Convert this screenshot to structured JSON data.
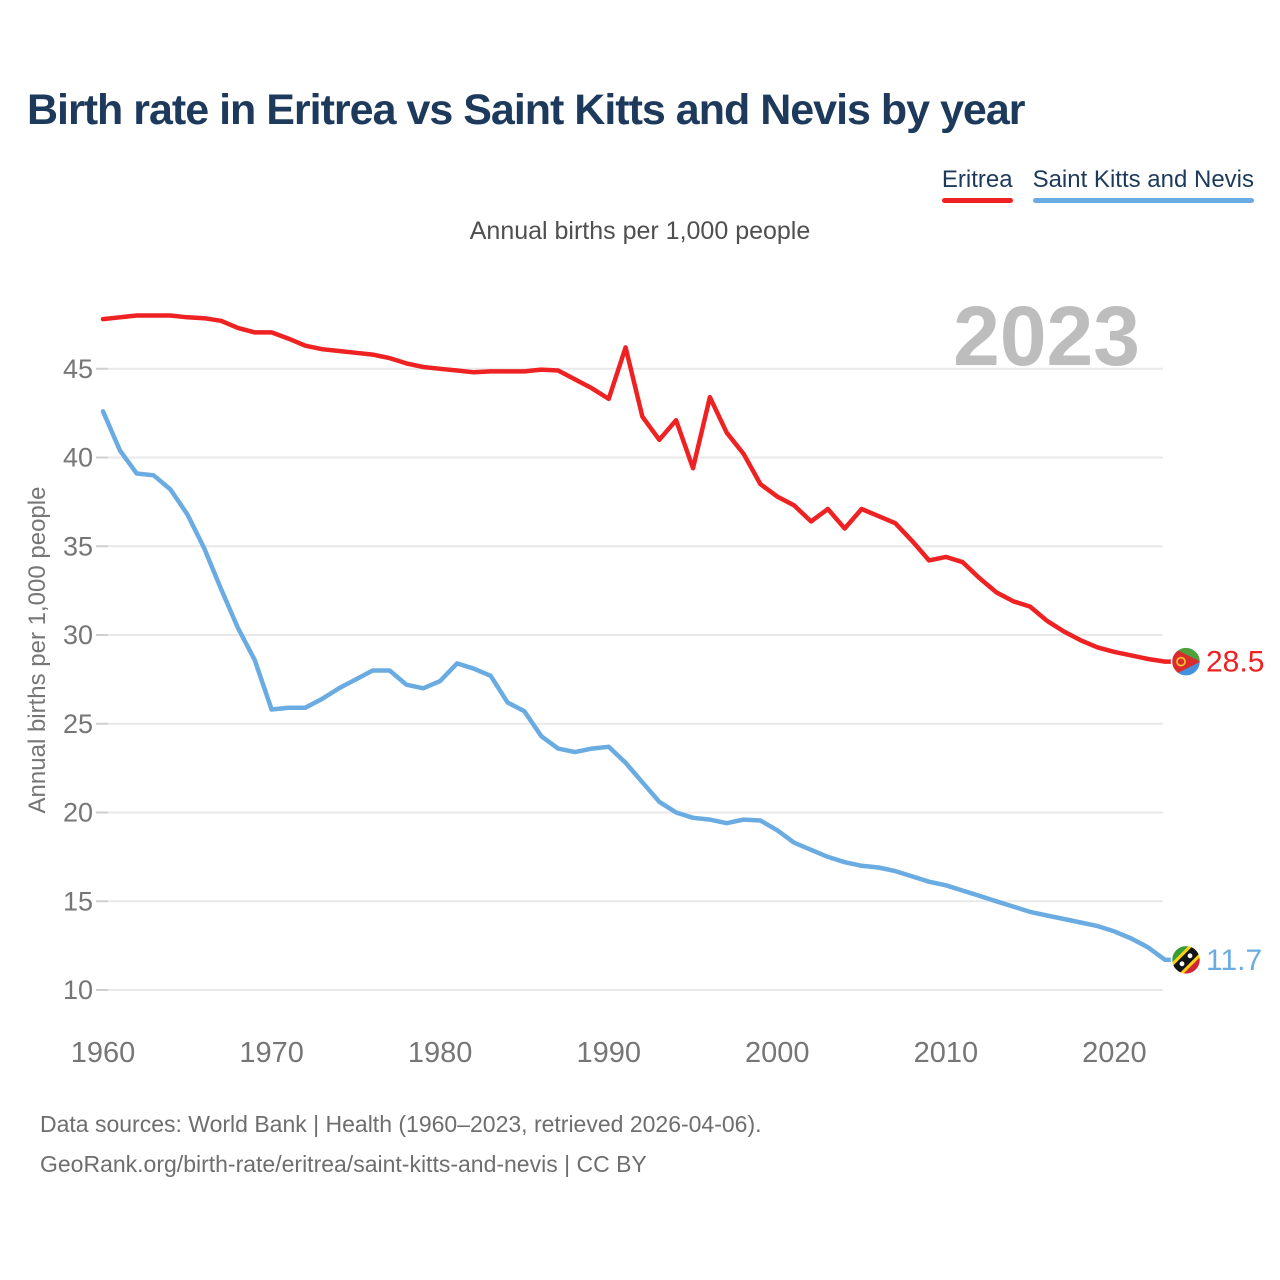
{
  "title": "Birth rate in Eritrea vs Saint Kitts and Nevis by year",
  "subtitle": "Annual births per 1,000 people",
  "watermark": "2023",
  "legend": [
    {
      "label": "Eritrea",
      "color": "#ee2222"
    },
    {
      "label": "Saint Kitts and Nevis",
      "color": "#6fadе1"
    }
  ],
  "colors": {
    "eritrea_line": "#ee2222",
    "saint_kitts_line": "#6aace1",
    "title_navy": "#1d3a5c",
    "axis_text_gray": "#767676",
    "watermark_gray": "#bdbdbd",
    "gridline_gray": "#e9e9e9",
    "footer_gray": "#6e6e6e"
  },
  "chart_data": {
    "type": "line",
    "title": "Birth rate in Eritrea vs Saint Kitts and Nevis by year",
    "ylabel": "Annual births per 1,000 people",
    "xlabel": "",
    "x_start": 1960,
    "x_end": 2023,
    "xticks": [
      1960,
      1970,
      1980,
      1990,
      2000,
      2010,
      2020
    ],
    "yticks": [
      45,
      40,
      35,
      30,
      25,
      20,
      15,
      10
    ],
    "ylim": [
      8.5,
      48.5
    ],
    "grid": "horizontal",
    "legend_position": "top-right",
    "watermark": "2023",
    "series": [
      {
        "name": "Eritrea",
        "color": "#ee2222",
        "end_label": "28.5",
        "flag": "eritrea",
        "values": [
          47.8,
          47.9,
          48.0,
          48.0,
          48.0,
          47.9,
          47.85,
          47.7,
          47.3,
          47.05,
          47.05,
          46.7,
          46.3,
          46.1,
          46.0,
          45.9,
          45.8,
          45.6,
          45.3,
          45.1,
          45.0,
          44.9,
          44.8,
          44.85,
          44.85,
          44.85,
          44.95,
          44.9,
          44.4,
          43.9,
          43.3,
          46.2,
          42.3,
          41.0,
          42.1,
          39.4,
          43.4,
          41.4,
          40.2,
          38.5,
          37.8,
          37.3,
          36.4,
          37.1,
          36.0,
          37.1,
          36.7,
          36.3,
          35.3,
          34.2,
          34.4,
          34.1,
          33.2,
          32.4,
          31.9,
          31.6,
          30.8,
          30.2,
          29.7,
          29.3,
          29.05,
          28.85,
          28.65,
          28.5
        ]
      },
      {
        "name": "Saint Kitts and Nevis",
        "color": "#6aace1",
        "end_label": "11.7",
        "flag": "saint-kitts-and-nevis",
        "values": [
          42.6,
          40.4,
          39.1,
          39.0,
          38.2,
          36.8,
          34.9,
          32.6,
          30.4,
          28.6,
          25.8,
          25.9,
          25.9,
          26.4,
          27.0,
          27.5,
          28.0,
          28.0,
          27.2,
          27.0,
          27.4,
          28.4,
          28.1,
          27.7,
          26.2,
          25.7,
          24.3,
          23.6,
          23.4,
          23.6,
          23.7,
          22.8,
          21.7,
          20.6,
          20.0,
          19.7,
          19.6,
          19.4,
          19.6,
          19.55,
          19.0,
          18.3,
          17.9,
          17.5,
          17.2,
          17.0,
          16.9,
          16.7,
          16.4,
          16.1,
          15.9,
          15.6,
          15.3,
          15.0,
          14.7,
          14.4,
          14.2,
          14.0,
          13.8,
          13.6,
          13.3,
          12.9,
          12.4,
          11.7
        ]
      }
    ]
  },
  "footer": {
    "line1": "Data sources: World Bank | Health (1960–2023, retrieved 2026-04-06).",
    "line2": "GeoRank.org/birth-rate/eritrea/saint-kitts-and-nevis | CC BY"
  }
}
